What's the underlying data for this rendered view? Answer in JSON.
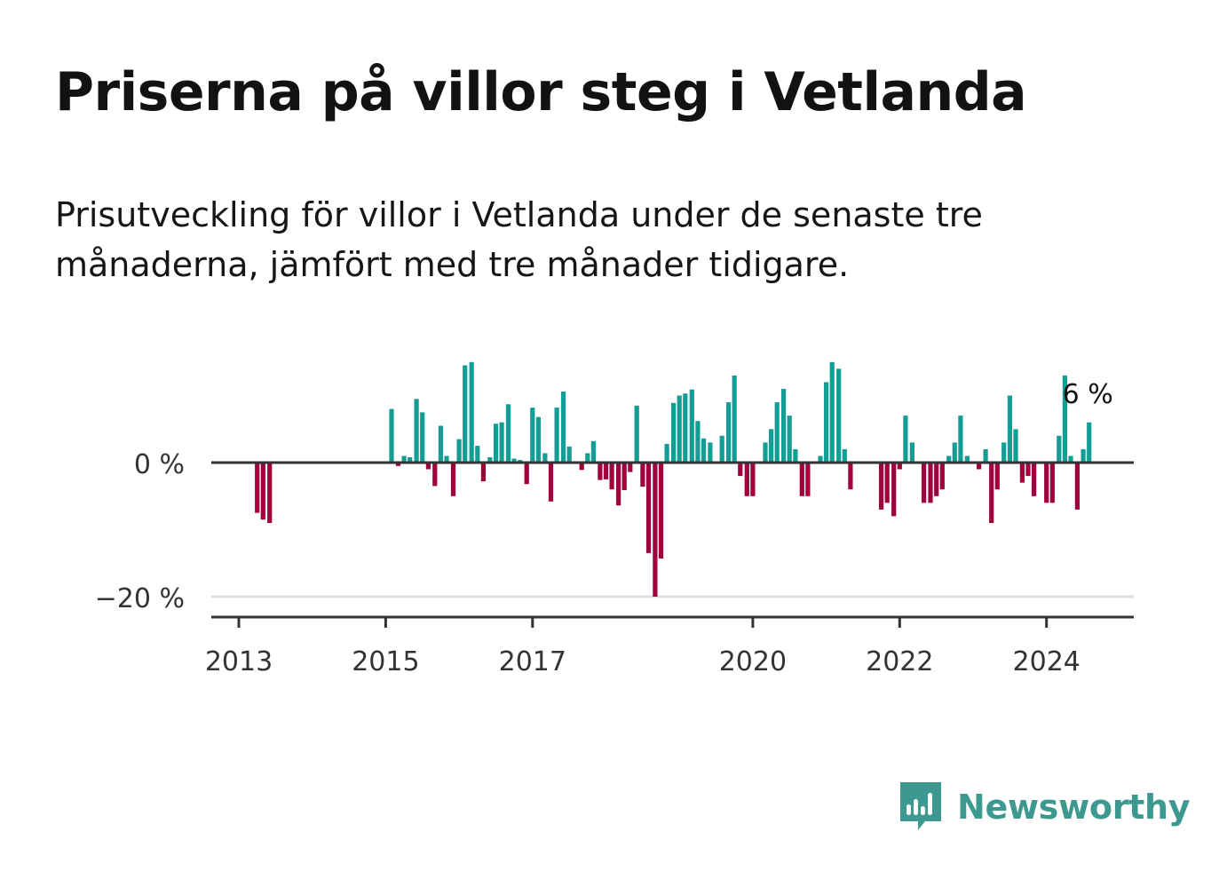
{
  "title": "Priserna på villor steg i Vetlanda",
  "subtitle": "Prisutveckling för villor i Vetlanda under de senaste tre månaderna, jämfört med tre månader tidigare.",
  "colors": {
    "positive": "#139e95",
    "negative": "#a0003c",
    "axis": "#333333",
    "grid": "#dddddd",
    "brand": "#3d9990"
  },
  "brand": {
    "name": "Newsworthy",
    "icon": "bar-chart-speech-bubble-icon"
  },
  "chart_data": {
    "type": "bar",
    "title": "",
    "xlabel": "",
    "ylabel": "",
    "unit": "%",
    "ylim": [
      -23,
      15
    ],
    "yticks": [
      {
        "value": 0,
        "label": "0 %"
      },
      {
        "value": -20,
        "label": "−20 %"
      }
    ],
    "xticks": [
      {
        "value": 2013,
        "label": "2013"
      },
      {
        "value": 2015,
        "label": "2015"
      },
      {
        "value": 2017,
        "label": "2017"
      },
      {
        "value": 2020,
        "label": "2020"
      },
      {
        "value": 2022,
        "label": "2022"
      },
      {
        "value": 2024,
        "label": "2024"
      }
    ],
    "xlim": [
      2012.8,
      2025.2
    ],
    "annotation": {
      "label": "6 %",
      "x": 2024.58,
      "value": 6
    },
    "x": [
      2013.25,
      2013.33,
      2013.42,
      2015.08,
      2015.17,
      2015.25,
      2015.33,
      2015.42,
      2015.5,
      2015.58,
      2015.67,
      2015.75,
      2015.83,
      2015.92,
      2016.0,
      2016.08,
      2016.17,
      2016.25,
      2016.33,
      2016.42,
      2016.5,
      2016.58,
      2016.67,
      2016.75,
      2016.83,
      2016.92,
      2017.0,
      2017.08,
      2017.17,
      2017.25,
      2017.33,
      2017.42,
      2017.5,
      2017.58,
      2017.67,
      2017.75,
      2017.83,
      2017.92,
      2018.0,
      2018.08,
      2018.17,
      2018.25,
      2018.33,
      2018.42,
      2018.5,
      2018.58,
      2018.67,
      2018.75,
      2018.83,
      2018.92,
      2019.0,
      2019.08,
      2019.17,
      2019.25,
      2019.33,
      2019.42,
      2019.5,
      2019.58,
      2019.67,
      2019.75,
      2019.83,
      2019.92,
      2020.0,
      2020.08,
      2020.17,
      2020.25,
      2020.33,
      2020.42,
      2020.5,
      2020.58,
      2020.67,
      2020.75,
      2020.83,
      2020.92,
      2021.0,
      2021.08,
      2021.17,
      2021.25,
      2021.33,
      2021.42,
      2021.5,
      2021.58,
      2021.67,
      2021.75,
      2021.83,
      2021.92,
      2022.0,
      2022.08,
      2022.17,
      2022.25,
      2022.33,
      2022.42,
      2022.5,
      2022.58,
      2022.67,
      2022.75,
      2022.83,
      2022.92,
      2023.0,
      2023.08,
      2023.17,
      2023.25,
      2023.33,
      2023.42,
      2023.5,
      2023.58,
      2023.67,
      2023.75,
      2023.83,
      2023.92,
      2024.0,
      2024.08,
      2024.17,
      2024.25,
      2024.33,
      2024.42,
      2024.5,
      2024.58
    ],
    "values": [
      -7.5,
      -8.5,
      -9,
      8,
      -0.5,
      1,
      0.8,
      9.5,
      7.5,
      -1,
      -3.5,
      5.5,
      1,
      -5,
      3.5,
      14.5,
      15,
      2.5,
      -2.8,
      0.8,
      5.8,
      6,
      8.7,
      0.6,
      0.4,
      -3.2,
      8.2,
      6.8,
      1.4,
      -5.8,
      8.2,
      10.6,
      2.4,
      0.1,
      -1.1,
      1.4,
      3.2,
      -2.6,
      -2.5,
      -4,
      -6.4,
      -4.1,
      -1.4,
      8.5,
      -3.6,
      -13.5,
      -20,
      -14.3,
      2.8,
      8.9,
      10,
      10.3,
      10.9,
      6.2,
      3.6,
      3,
      0.1,
      4,
      9,
      13,
      -2,
      -5,
      -5,
      0.1,
      3,
      5,
      9,
      11,
      7,
      2,
      -5,
      -5,
      0.1,
      1,
      12,
      15,
      14,
      2,
      -4,
      0.1,
      0.1,
      0.1,
      0.1,
      -7,
      -6,
      -8,
      -1,
      7,
      3,
      0.1,
      -6,
      -6,
      -5,
      -4,
      1,
      3,
      7,
      1,
      0.1,
      -1,
      2,
      -9,
      -4,
      3,
      10,
      5,
      -3,
      -2,
      -5,
      0.1,
      -6,
      -6,
      4,
      13,
      1,
      -7,
      2,
      6
    ]
  }
}
